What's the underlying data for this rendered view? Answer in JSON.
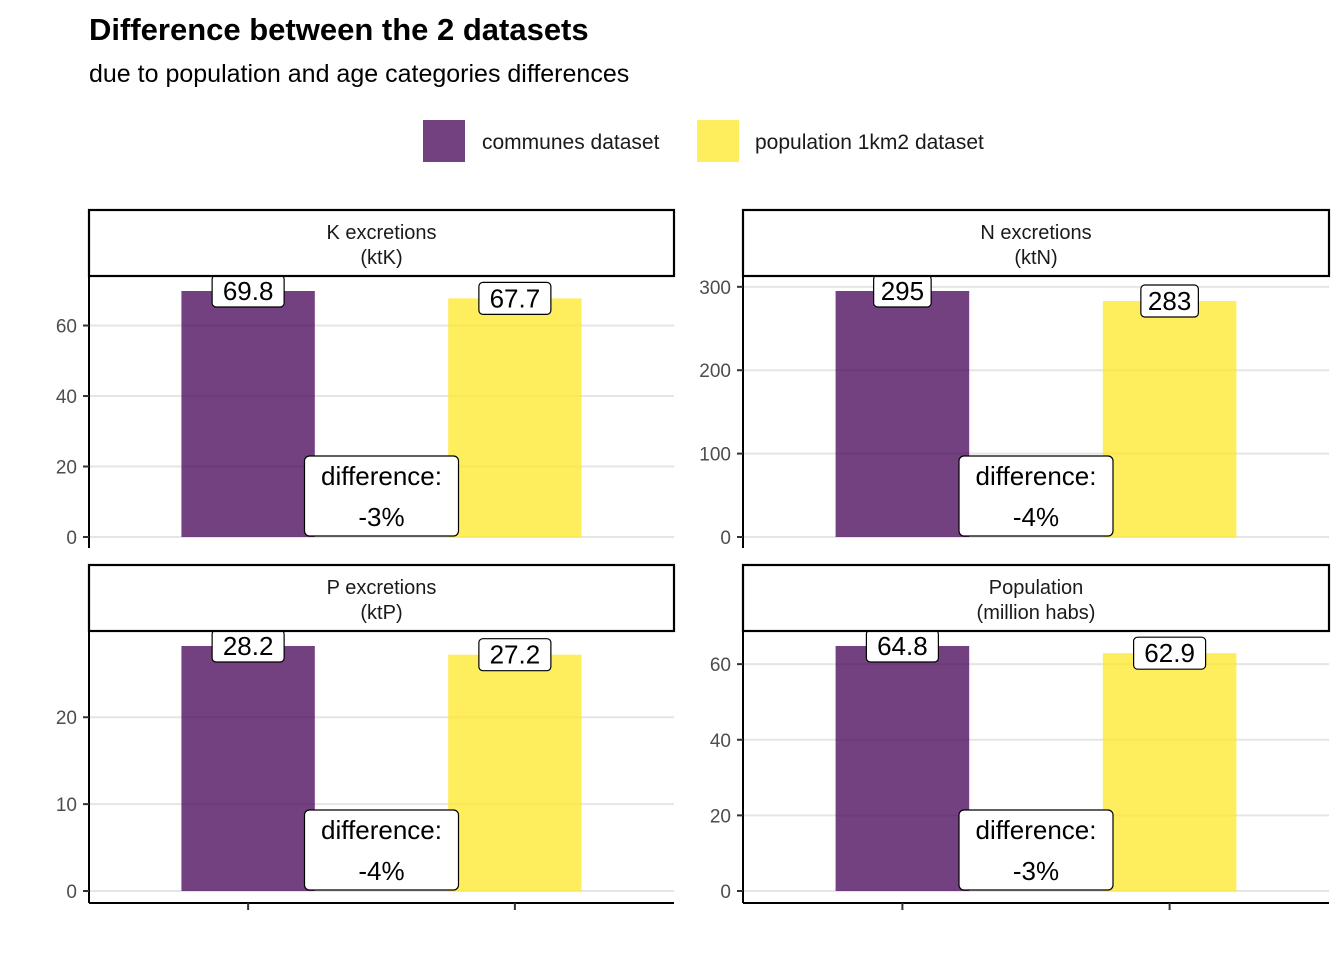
{
  "title": "Difference between the 2 datasets",
  "subtitle": "due to population and age categories differences",
  "legend": [
    {
      "label": "communes dataset",
      "color": "#440154"
    },
    {
      "label": "population 1km2 dataset",
      "color": "#FDE725"
    }
  ],
  "chart_data": [
    {
      "type": "bar",
      "panel": "top-left",
      "strip": [
        "K excretions",
        "(ktK)"
      ],
      "categories": [
        "communes dataset",
        "population 1km2 dataset"
      ],
      "values": [
        69.8,
        67.7
      ],
      "value_labels": [
        "69.8",
        "67.7"
      ],
      "ylim": [
        0,
        69.8
      ],
      "yticks": [
        0,
        20,
        40,
        60
      ],
      "difference_label": [
        "difference:",
        "-3%"
      ],
      "grid": true
    },
    {
      "type": "bar",
      "panel": "top-right",
      "strip": [
        "N excretions",
        "(ktN)"
      ],
      "categories": [
        "communes dataset",
        "population 1km2 dataset"
      ],
      "values": [
        295,
        283
      ],
      "value_labels": [
        "295",
        "283"
      ],
      "ylim": [
        0,
        295
      ],
      "yticks": [
        0,
        100,
        200,
        300
      ],
      "difference_label": [
        "difference:",
        "-4%"
      ],
      "grid": true
    },
    {
      "type": "bar",
      "panel": "bottom-left",
      "strip": [
        "P excretions",
        "(ktP)"
      ],
      "categories": [
        "communes dataset",
        "population 1km2 dataset"
      ],
      "values": [
        28.2,
        27.2
      ],
      "value_labels": [
        "28.2",
        "27.2"
      ],
      "ylim": [
        0,
        28.2
      ],
      "yticks": [
        0,
        10,
        20
      ],
      "difference_label": [
        "difference:",
        "-4%"
      ],
      "grid": true
    },
    {
      "type": "bar",
      "panel": "bottom-right",
      "strip": [
        "Population",
        "(million habs)"
      ],
      "categories": [
        "communes dataset",
        "population 1km2 dataset"
      ],
      "values": [
        64.8,
        62.9
      ],
      "value_labels": [
        "64.8",
        "62.9"
      ],
      "ylim": [
        0,
        64.8
      ],
      "yticks": [
        0,
        20,
        40,
        60
      ],
      "difference_label": [
        "difference:",
        "-3%"
      ],
      "grid": true
    }
  ]
}
